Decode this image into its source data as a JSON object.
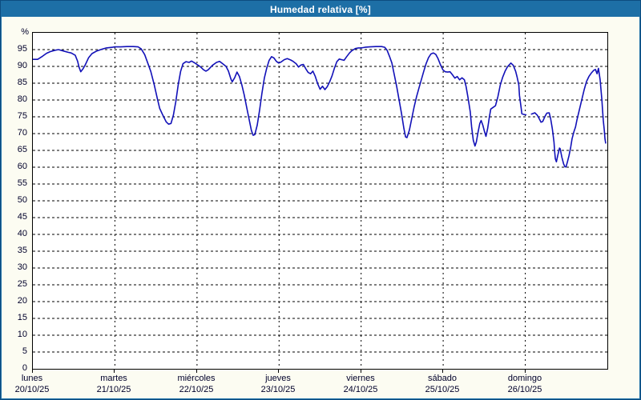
{
  "window": {
    "title": "Humedad relativa [%]"
  },
  "chart_data": {
    "type": "line",
    "title": "Humedad relativa [%]",
    "ylabel": "%",
    "xlabel": "",
    "ylim": [
      0,
      100
    ],
    "y_ticks": [
      0,
      5,
      10,
      15,
      20,
      25,
      30,
      35,
      40,
      45,
      50,
      55,
      60,
      65,
      70,
      75,
      80,
      85,
      90,
      95
    ],
    "x_range_hours": [
      0,
      168
    ],
    "grid": "dashed",
    "legend_position": "none",
    "days": [
      {
        "label": "lunes",
        "date": "20/10/25"
      },
      {
        "label": "martes",
        "date": "21/10/25"
      },
      {
        "label": "miércoles",
        "date": "22/10/25"
      },
      {
        "label": "jueves",
        "date": "23/10/25"
      },
      {
        "label": "viernes",
        "date": "24/10/25"
      },
      {
        "label": "sábado",
        "date": "25/10/25"
      },
      {
        "label": "domingo",
        "date": "26/10/25"
      }
    ],
    "colors": {
      "titlebar": "#1d6fa6",
      "frame_outer": "#0d4c80",
      "page_bg": "#fcfcf2",
      "plot_bg": "#ffffff",
      "grid": "#000000",
      "line": "#1211b8",
      "text": "#00002a",
      "title_text": "#ffffff"
    },
    "series": [
      {
        "name": "Humedad relativa",
        "unit": "%",
        "segments": [
          [
            [
              0,
              92.1
            ],
            [
              1.4,
              92.1
            ],
            [
              2.8,
              93
            ],
            [
              4,
              93.9
            ],
            [
              5.1,
              94.4
            ],
            [
              6.5,
              94.8
            ],
            [
              7.5,
              95
            ],
            [
              8.9,
              94.6
            ],
            [
              10.3,
              94.2
            ],
            [
              11.2,
              94
            ],
            [
              12.4,
              93.3
            ],
            [
              13.1,
              91.5
            ],
            [
              13.5,
              89.8
            ],
            [
              14,
              88.4
            ],
            [
              14.7,
              89.3
            ],
            [
              15.4,
              90.6
            ],
            [
              16.3,
              92.6
            ],
            [
              17.3,
              93.8
            ],
            [
              18.7,
              94.6
            ],
            [
              20.1,
              95.1
            ],
            [
              21.5,
              95.5
            ],
            [
              23.3,
              95.7
            ],
            [
              24,
              95.8
            ],
            [
              25.7,
              95.8
            ],
            [
              27.5,
              95.9
            ],
            [
              29.4,
              95.9
            ],
            [
              30.8,
              95.8
            ],
            [
              31.7,
              95.2
            ],
            [
              32.7,
              93.5
            ],
            [
              33.6,
              91
            ],
            [
              34.5,
              88.5
            ],
            [
              35.5,
              84.5
            ],
            [
              36.4,
              80.5
            ],
            [
              37.1,
              77.5
            ],
            [
              38,
              75.5
            ],
            [
              39,
              73.5
            ],
            [
              39.7,
              72.8
            ],
            [
              40.4,
              73
            ],
            [
              41.1,
              75.5
            ],
            [
              41.8,
              79.5
            ],
            [
              42.5,
              84.5
            ],
            [
              43.2,
              88.5
            ],
            [
              43.9,
              90.8
            ],
            [
              44.8,
              91.4
            ],
            [
              45.7,
              91.2
            ],
            [
              46.4,
              91.6
            ],
            [
              47.4,
              91
            ],
            [
              48.1,
              90.5
            ],
            [
              49,
              89.9
            ],
            [
              49.9,
              89
            ],
            [
              50.6,
              88.6
            ],
            [
              51.3,
              89
            ],
            [
              52.5,
              90.3
            ],
            [
              53.7,
              91.2
            ],
            [
              54.6,
              91.5
            ],
            [
              55.5,
              90.8
            ],
            [
              56.5,
              90
            ],
            [
              57.2,
              88.6
            ],
            [
              57.9,
              86.3
            ],
            [
              58.3,
              85.4
            ],
            [
              59,
              86.6
            ],
            [
              59.7,
              88.3
            ],
            [
              60.4,
              87
            ],
            [
              61.1,
              84.5
            ],
            [
              61.8,
              81.5
            ],
            [
              62.5,
              78
            ],
            [
              63.2,
              74.5
            ],
            [
              63.9,
              71
            ],
            [
              64.4,
              69.5
            ],
            [
              64.9,
              69.7
            ],
            [
              65.6,
              72.5
            ],
            [
              66.3,
              77
            ],
            [
              67,
              82
            ],
            [
              67.7,
              86.5
            ],
            [
              68.4,
              89.5
            ],
            [
              69.1,
              91.8
            ],
            [
              69.8,
              92.9
            ],
            [
              70.5,
              92.5
            ],
            [
              71.2,
              91.5
            ],
            [
              71.9,
              91
            ],
            [
              72.6,
              91.3
            ],
            [
              73.5,
              92
            ],
            [
              74.4,
              92.3
            ],
            [
              75.4,
              91.9
            ],
            [
              76.1,
              91.5
            ],
            [
              77,
              90.8
            ],
            [
              77.7,
              89.8
            ],
            [
              78.4,
              90.4
            ],
            [
              79.1,
              90.6
            ],
            [
              79.8,
              89.3
            ],
            [
              80.5,
              88.2
            ],
            [
              81.2,
              87.8
            ],
            [
              81.9,
              88.6
            ],
            [
              82.6,
              87
            ],
            [
              83.3,
              84.8
            ],
            [
              84,
              83.2
            ],
            [
              84.7,
              84.1
            ],
            [
              85.4,
              83.1
            ],
            [
              86.1,
              84
            ],
            [
              86.8,
              85.4
            ],
            [
              87.5,
              87.2
            ],
            [
              88.2,
              89.5
            ],
            [
              88.9,
              91.4
            ],
            [
              89.6,
              92.2
            ],
            [
              90.3,
              92
            ],
            [
              91,
              91.8
            ],
            [
              91.7,
              92.8
            ],
            [
              92.6,
              94
            ],
            [
              93.3,
              94.7
            ],
            [
              94.3,
              95.3
            ],
            [
              95.2,
              95.5
            ],
            [
              96.1,
              95.5
            ],
            [
              97.1,
              95.7
            ],
            [
              98.5,
              95.8
            ],
            [
              100.3,
              95.9
            ],
            [
              102,
              95.9
            ],
            [
              102.9,
              95.7
            ],
            [
              103.6,
              94.8
            ],
            [
              104.3,
              93
            ],
            [
              105,
              91
            ],
            [
              105.7,
              87.5
            ],
            [
              106.4,
              84
            ],
            [
              107.1,
              80
            ],
            [
              107.8,
              76
            ],
            [
              108.5,
              71.5
            ],
            [
              109,
              69
            ],
            [
              109.4,
              68.8
            ],
            [
              110.1,
              71
            ],
            [
              110.8,
              74.5
            ],
            [
              111.5,
              78
            ],
            [
              112.2,
              81
            ],
            [
              112.9,
              83.5
            ],
            [
              113.6,
              86
            ],
            [
              114.3,
              88.5
            ],
            [
              115,
              90.8
            ],
            [
              115.7,
              92.6
            ],
            [
              116.4,
              93.7
            ],
            [
              117.1,
              94
            ],
            [
              117.8,
              93.6
            ],
            [
              118.5,
              92.3
            ],
            [
              119.2,
              90.5
            ],
            [
              119.9,
              89
            ],
            [
              120.6,
              88.4
            ],
            [
              121.3,
              88.3
            ],
            [
              122,
              88.4
            ],
            [
              122.7,
              87.5
            ],
            [
              123.4,
              86.5
            ],
            [
              124.1,
              87
            ],
            [
              124.8,
              86
            ],
            [
              125.5,
              86.6
            ],
            [
              126.2,
              86
            ],
            [
              126.7,
              84
            ],
            [
              127.2,
              81
            ],
            [
              127.9,
              76.5
            ],
            [
              128.3,
              72
            ],
            [
              128.8,
              68
            ],
            [
              129.3,
              66.3
            ],
            [
              129.7,
              67.5
            ],
            [
              130.2,
              70.5
            ],
            [
              130.7,
              73
            ],
            [
              131.1,
              73.9
            ],
            [
              131.6,
              72.5
            ],
            [
              132.1,
              70.5
            ],
            [
              132.5,
              69.2
            ],
            [
              133,
              71.5
            ],
            [
              133.5,
              75
            ],
            [
              133.9,
              77.3
            ],
            [
              134.6,
              77.8
            ],
            [
              135.3,
              78.3
            ],
            [
              136,
              81
            ],
            [
              136.7,
              84.5
            ],
            [
              137.4,
              86.8
            ],
            [
              138.1,
              88.6
            ],
            [
              138.8,
              89.9
            ],
            [
              139.8,
              91
            ],
            [
              140.5,
              90.3
            ],
            [
              141.2,
              88.5
            ],
            [
              141.6,
              86.9
            ],
            [
              142.1,
              84.5
            ],
            [
              142.3,
              81.4
            ],
            [
              142.8,
              77.5
            ],
            [
              143,
              75.9
            ],
            [
              143.7,
              75.7
            ],
            [
              144.2,
              75.6
            ]
          ],
          [
            [
              145.8,
              75.8
            ],
            [
              146.8,
              76.2
            ],
            [
              147.5,
              75.5
            ],
            [
              148.2,
              74.2
            ],
            [
              148.6,
              73.4
            ],
            [
              149.1,
              73.6
            ],
            [
              149.8,
              75.2
            ],
            [
              150.3,
              76.1
            ],
            [
              151,
              76.2
            ],
            [
              151.4,
              74.5
            ],
            [
              151.9,
              71.5
            ],
            [
              152.4,
              67.5
            ],
            [
              152.6,
              64.5
            ],
            [
              152.8,
              62.5
            ],
            [
              153.1,
              61.6
            ],
            [
              153.5,
              63.5
            ],
            [
              154,
              65.7
            ],
            [
              154.2,
              65.5
            ],
            [
              154.7,
              63
            ],
            [
              155.2,
              61
            ],
            [
              155.6,
              60.1
            ],
            [
              155.9,
              60.1
            ],
            [
              156.3,
              61.5
            ],
            [
              156.8,
              63.5
            ],
            [
              157.3,
              66
            ],
            [
              157.7,
              68.5
            ],
            [
              158.2,
              70.5
            ],
            [
              158.7,
              72
            ],
            [
              159.1,
              74
            ],
            [
              159.8,
              77
            ],
            [
              160.5,
              80
            ],
            [
              161.2,
              83
            ],
            [
              161.9,
              85.5
            ],
            [
              162.6,
              87
            ],
            [
              163.3,
              88
            ],
            [
              164,
              88.8
            ],
            [
              164.5,
              89.1
            ],
            [
              165,
              87.8
            ],
            [
              165.4,
              89.4
            ],
            [
              165.9,
              86
            ],
            [
              166.1,
              83.5
            ],
            [
              166.4,
              80
            ],
            [
              166.6,
              77
            ],
            [
              166.8,
              74
            ],
            [
              167.1,
              71
            ],
            [
              167.3,
              68.5
            ],
            [
              167.5,
              67.2
            ]
          ]
        ]
      }
    ]
  }
}
